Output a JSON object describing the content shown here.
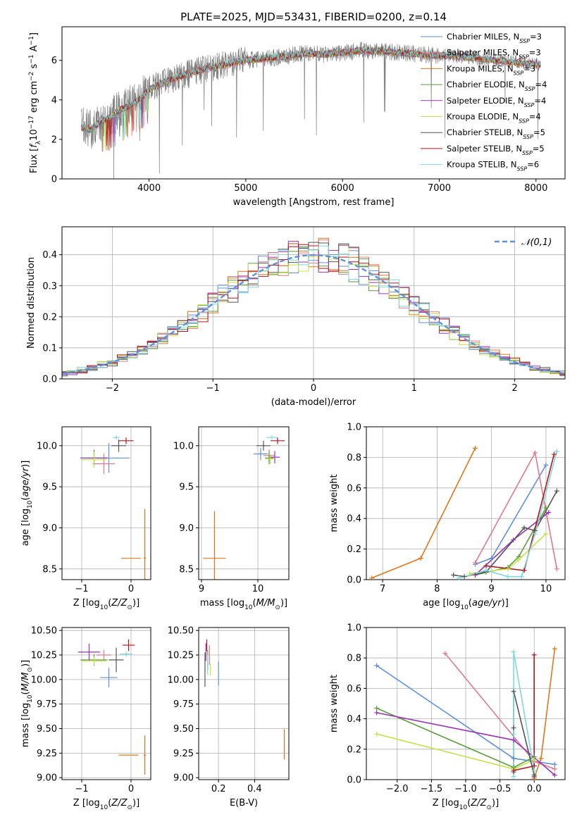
{
  "title": "PLATE=2025, MJD=53431, FIBERID=0200, z=0.14",
  "colors": {
    "Chabrier MILES": "#5f8fde",
    "Salpeter MILES": "#e07a8a",
    "Kroupa MILES": "#e0761a",
    "Chabrier ELODIE": "#5a9e3a",
    "Salpeter ELODIE": "#9a33b8",
    "Kroupa ELODIE": "#c8e04a",
    "Chabrier STELIB": "#555555",
    "Salpeter STELIB": "#b0151c",
    "Kroupa STELIB": "#7fd8e0",
    "data": "#808080",
    "grid": "#b0b0b0"
  },
  "chart_data": [
    {
      "id": "spectrum",
      "type": "line",
      "xlabel": "wavelength [Angstrom, rest frame]",
      "ylabel": "Flux [f_λ 10^-17 erg cm^-2 s^-1 A^-1]",
      "xlim": [
        3100,
        8300
      ],
      "ylim": [
        0,
        7.7
      ],
      "xticks": [
        4000,
        5000,
        6000,
        7000,
        8000
      ],
      "yticks": [
        0,
        2,
        4,
        6
      ],
      "grid": false,
      "legend_position": "upper-right",
      "series_shape": {
        "x": [
          3300,
          3400,
          3500,
          3600,
          3700,
          3800,
          3900,
          4000,
          4200,
          4400,
          4600,
          4800,
          5000,
          5200,
          5400,
          5600,
          5800,
          6000,
          6200,
          6400,
          6600,
          6800,
          7000,
          7200,
          7400,
          7600,
          7800,
          8000
        ],
        "y": [
          2.6,
          2.5,
          2.9,
          3.1,
          3.5,
          3.7,
          4.0,
          4.5,
          5.0,
          5.3,
          5.6,
          5.8,
          6.0,
          6.1,
          6.2,
          6.35,
          6.3,
          6.4,
          6.5,
          6.45,
          6.4,
          6.3,
          6.25,
          6.2,
          6.1,
          6.0,
          5.9,
          5.8
        ]
      },
      "legend": [
        {
          "label": "Chabrier MILES",
          "nssp": "3"
        },
        {
          "label": "Salpeter MILES",
          "nssp": "3"
        },
        {
          "label": "Kroupa MILES",
          "nssp": "3"
        },
        {
          "label": "Chabrier ELODIE",
          "nssp": "4"
        },
        {
          "label": "Salpeter ELODIE",
          "nssp": "4"
        },
        {
          "label": "Kroupa ELODIE",
          "nssp": "4"
        },
        {
          "label": "Chabrier STELIB",
          "nssp": "5"
        },
        {
          "label": "Salpeter STELIB",
          "nssp": "5"
        },
        {
          "label": "Kroupa STELIB",
          "nssp": "6"
        }
      ]
    },
    {
      "id": "residuals",
      "type": "line",
      "xlabel": "(data-model)/error",
      "ylabel": "Normed distribution",
      "xlim": [
        -2.5,
        2.5
      ],
      "ylim": [
        0,
        0.49
      ],
      "xticks": [
        -2,
        -1,
        0,
        1,
        2
      ],
      "yticks": [
        0.0,
        0.1,
        0.2,
        0.3,
        0.4
      ],
      "grid": true,
      "legend_position": "upper-right",
      "legend": [
        "𝒩(0,1)"
      ],
      "reference_curve": "normal(0,1)"
    },
    {
      "id": "age_vs_Z",
      "type": "scatter",
      "xlabel": "Z [log10(Z/Z⊙)]",
      "ylabel": "age [log10(age/yr)]",
      "xlim": [
        -1.4,
        0.4
      ],
      "ylim": [
        8.37,
        10.23
      ],
      "xticks": [
        -1,
        0
      ],
      "yticks": [
        8.5,
        9.0,
        9.5,
        10.0
      ],
      "grid": true,
      "points": [
        {
          "model": "Chabrier MILES",
          "x": -0.45,
          "y": 9.85,
          "ex": 0.85,
          "ey": 0.36
        },
        {
          "model": "Salpeter MILES",
          "x": -0.55,
          "y": 9.78,
          "ex": 0.45,
          "ey": 0.25
        },
        {
          "model": "Kroupa MILES",
          "x": 0.28,
          "y": 8.63,
          "ex": 0.05,
          "ey": 1.2
        },
        {
          "model": "Kroupa MILES",
          "x": 0.0,
          "y": 8.63,
          "ex": 0.4,
          "ey": 0.0
        },
        {
          "model": "Chabrier ELODIE",
          "x": -0.75,
          "y": 9.85,
          "ex": 0.55,
          "ey": 0.18
        },
        {
          "model": "Salpeter ELODIE",
          "x": -0.75,
          "y": 9.85,
          "ex": 0.55,
          "ey": 0.2
        },
        {
          "model": "Kroupa ELODIE",
          "x": -0.75,
          "y": 9.83,
          "ex": 0.5,
          "ey": 0.2
        },
        {
          "model": "Chabrier STELIB",
          "x": -0.25,
          "y": 10.0,
          "ex": 0.3,
          "ey": 0.15
        },
        {
          "model": "Salpeter STELIB",
          "x": -0.1,
          "y": 10.06,
          "ex": 0.3,
          "ey": 0.08
        },
        {
          "model": "Kroupa STELIB",
          "x": -0.3,
          "y": 10.1,
          "ex": 0.15,
          "ey": 0.05
        }
      ]
    },
    {
      "id": "age_vs_mass",
      "type": "scatter",
      "xlabel": "mass [log10(M/M⊙)]",
      "ylabel": "",
      "xlim": [
        8.95,
        10.55
      ],
      "ylim": [
        8.37,
        10.23
      ],
      "xticks": [
        9,
        10
      ],
      "yticks": [
        8.5,
        9.0,
        9.5,
        10.0
      ],
      "grid": true,
      "points": [
        {
          "model": "Chabrier MILES",
          "x": 10.05,
          "y": 9.9,
          "ex": 0.25,
          "ey": 0.15
        },
        {
          "model": "Salpeter MILES",
          "x": 10.2,
          "y": 9.88,
          "ex": 0.2,
          "ey": 0.15
        },
        {
          "model": "Kroupa MILES",
          "x": 9.23,
          "y": 8.63,
          "ex": 0.4,
          "ey": 1.15
        },
        {
          "model": "Chabrier ELODIE",
          "x": 10.2,
          "y": 9.85,
          "ex": 0.15,
          "ey": 0.15
        },
        {
          "model": "Salpeter ELODIE",
          "x": 10.3,
          "y": 9.86,
          "ex": 0.18,
          "ey": 0.15
        },
        {
          "model": "Kroupa ELODIE",
          "x": 10.22,
          "y": 9.84,
          "ex": 0.15,
          "ey": 0.12
        },
        {
          "model": "Chabrier STELIB",
          "x": 10.1,
          "y": 10.0,
          "ex": 0.25,
          "ey": 0.12
        },
        {
          "model": "Salpeter STELIB",
          "x": 10.35,
          "y": 10.06,
          "ex": 0.25,
          "ey": 0.08
        },
        {
          "model": "Kroupa STELIB",
          "x": 10.25,
          "y": 10.1,
          "ex": 0.2,
          "ey": 0.05
        }
      ]
    },
    {
      "id": "massweight_vs_age",
      "type": "line",
      "xlabel": "age [log10(age/yr)]",
      "ylabel": "mass weight",
      "xlim": [
        6.7,
        10.35
      ],
      "ylim": [
        0,
        1.0
      ],
      "xticks": [
        7,
        8,
        9,
        10
      ],
      "yticks": [
        0.0,
        0.2,
        0.4,
        0.6,
        0.8,
        1.0
      ],
      "grid": true,
      "series": [
        {
          "model": "Chabrier MILES",
          "x": [
            8.7,
            9.0,
            10.0
          ],
          "y": [
            0.1,
            0.14,
            0.75
          ]
        },
        {
          "model": "Salpeter MILES",
          "x": [
            8.7,
            9.8,
            10.2
          ],
          "y": [
            0.11,
            0.83,
            0.07
          ]
        },
        {
          "model": "Kroupa MILES",
          "x": [
            6.8,
            7.7,
            8.7
          ],
          "y": [
            0.01,
            0.14,
            0.86
          ]
        },
        {
          "model": "Chabrier ELODIE",
          "x": [
            8.7,
            9.3,
            9.5,
            10.0
          ],
          "y": [
            0.03,
            0.08,
            0.15,
            0.47
          ]
        },
        {
          "model": "Salpeter ELODIE",
          "x": [
            8.7,
            9.4,
            10.05
          ],
          "y": [
            0.03,
            0.26,
            0.44
          ]
        },
        {
          "model": "Kroupa ELODIE",
          "x": [
            8.6,
            9.3,
            9.5,
            10.0
          ],
          "y": [
            0.04,
            0.07,
            0.13,
            0.3
          ]
        },
        {
          "model": "Chabrier STELIB",
          "x": [
            8.3,
            8.5,
            8.9,
            9.6,
            9.8,
            10.2
          ],
          "y": [
            0.03,
            0.02,
            0.05,
            0.34,
            0.32,
            0.58
          ]
        },
        {
          "model": "Salpeter STELIB",
          "x": [
            8.9,
            9.6,
            10.15
          ],
          "y": [
            0.09,
            0.06,
            0.82
          ]
        },
        {
          "model": "Kroupa STELIB",
          "x": [
            8.4,
            8.9,
            9.3,
            9.55,
            9.8,
            10.2
          ],
          "y": [
            0.01,
            0.06,
            0.02,
            0.02,
            0.3,
            0.84
          ]
        }
      ]
    },
    {
      "id": "mass_vs_Z",
      "type": "scatter",
      "xlabel": "Z [log10(Z/Z⊙)]",
      "ylabel": "mass [log10(M/M⊙)]",
      "xlim": [
        -1.4,
        0.4
      ],
      "ylim": [
        8.98,
        10.53
      ],
      "xticks": [
        -1,
        0
      ],
      "yticks": [
        9.0,
        9.25,
        9.5,
        9.75,
        10.0,
        10.25,
        10.5
      ],
      "grid": true,
      "points": [
        {
          "model": "Chabrier MILES",
          "x": -0.45,
          "y": 10.02,
          "ex": 0.35,
          "ey": 0.2
        },
        {
          "model": "Salpeter MILES",
          "x": -0.55,
          "y": 10.25,
          "ex": 0.3,
          "ey": 0.1
        },
        {
          "model": "Kroupa MILES",
          "x": 0.28,
          "y": 9.23,
          "ex": 0.05,
          "ey": 0.4
        },
        {
          "model": "Kroupa MILES",
          "x": -0.05,
          "y": 9.23,
          "ex": 0.4,
          "ey": 0.0
        },
        {
          "model": "Chabrier ELODIE",
          "x": -0.75,
          "y": 10.2,
          "ex": 0.55,
          "ey": 0.12
        },
        {
          "model": "Salpeter ELODIE",
          "x": -0.85,
          "y": 10.28,
          "ex": 0.45,
          "ey": 0.17
        },
        {
          "model": "Kroupa ELODIE",
          "x": -0.75,
          "y": 10.19,
          "ex": 0.5,
          "ey": 0.08
        },
        {
          "model": "Chabrier STELIB",
          "x": -0.3,
          "y": 10.2,
          "ex": 0.3,
          "ey": 0.25
        },
        {
          "model": "Salpeter STELIB",
          "x": -0.05,
          "y": 10.35,
          "ex": 0.25,
          "ey": 0.12
        },
        {
          "model": "Kroupa STELIB",
          "x": -0.1,
          "y": 10.26,
          "ex": 0.25,
          "ey": 0.05
        }
      ]
    },
    {
      "id": "mass_vs_EBV",
      "type": "scatter",
      "xlabel": "E(B-V)",
      "ylabel": "",
      "xlim": [
        0.09,
        0.59
      ],
      "ylim": [
        8.98,
        10.53
      ],
      "xticks": [
        0.2,
        0.4
      ],
      "yticks": [
        9.0,
        9.25,
        9.5,
        9.75,
        10.0,
        10.25,
        10.5
      ],
      "grid": true,
      "points": [
        {
          "model": "Chabrier MILES",
          "x": 0.2,
          "y": 10.06,
          "ex": 0.0,
          "ey": 0.24
        },
        {
          "model": "Salpeter MILES",
          "x": 0.15,
          "y": 10.25,
          "ex": 0.0,
          "ey": 0.2
        },
        {
          "model": "Kroupa MILES",
          "x": 0.565,
          "y": 9.34,
          "ex": 0.0,
          "ey": 0.31
        },
        {
          "model": "Chabrier ELODIE",
          "x": 0.14,
          "y": 10.2,
          "ex": 0.0,
          "ey": 0.2
        },
        {
          "model": "Salpeter ELODIE",
          "x": 0.13,
          "y": 10.28,
          "ex": 0.0,
          "ey": 0.18
        },
        {
          "model": "Kroupa ELODIE",
          "x": 0.155,
          "y": 10.1,
          "ex": 0.0,
          "ey": 0.12
        },
        {
          "model": "Chabrier STELIB",
          "x": 0.125,
          "y": 10.1,
          "ex": 0.0,
          "ey": 0.35
        },
        {
          "model": "Salpeter STELIB",
          "x": 0.135,
          "y": 10.35,
          "ex": 0.0,
          "ey": 0.12
        },
        {
          "model": "Kroupa STELIB",
          "x": 0.14,
          "y": 10.15,
          "ex": 0.0,
          "ey": 0.2
        }
      ]
    },
    {
      "id": "massweight_vs_Z",
      "type": "line",
      "xlabel": "Z [log10(Z/Z⊙)]",
      "ylabel": "mass weight",
      "xlim": [
        -2.45,
        0.45
      ],
      "ylim": [
        0,
        1.0
      ],
      "xticks": [
        -2.0,
        -1.5,
        -1.0,
        -0.5,
        0.0
      ],
      "yticks": [
        0.0,
        0.2,
        0.4,
        0.6,
        0.8,
        1.0
      ],
      "grid": true,
      "series": [
        {
          "model": "Chabrier MILES",
          "x": [
            -2.3,
            -0.3,
            0.3
          ],
          "y": [
            0.75,
            0.14,
            0.1
          ]
        },
        {
          "model": "Salpeter MILES",
          "x": [
            -1.3,
            0.0,
            0.3
          ],
          "y": [
            0.83,
            0.12,
            0.07
          ]
        },
        {
          "model": "Kroupa MILES",
          "x": [
            0.0,
            0.1,
            0.3
          ],
          "y": [
            0.01,
            0.14,
            0.86
          ]
        },
        {
          "model": "Chabrier ELODIE",
          "x": [
            -2.3,
            -0.3,
            0.0
          ],
          "y": [
            0.47,
            0.08,
            0.15
          ]
        },
        {
          "model": "Salpeter ELODIE",
          "x": [
            -2.3,
            -0.3,
            0.3
          ],
          "y": [
            0.44,
            0.26,
            0.03
          ]
        },
        {
          "model": "Kroupa ELODIE",
          "x": [
            -2.3,
            -0.3,
            0.0
          ],
          "y": [
            0.3,
            0.07,
            0.13
          ]
        },
        {
          "model": "Chabrier STELIB",
          "x": [
            -0.3,
            -0.3,
            -0.3,
            0.0,
            0.0
          ],
          "y": [
            0.05,
            0.34,
            0.58,
            0.03,
            0.02
          ]
        },
        {
          "model": "Salpeter STELIB",
          "x": [
            -0.3,
            0.0,
            0.0
          ],
          "y": [
            0.06,
            0.09,
            0.82
          ]
        },
        {
          "model": "Kroupa STELIB",
          "x": [
            -0.3,
            -0.3,
            -0.3,
            0.0
          ],
          "y": [
            0.02,
            0.3,
            0.84,
            0.06
          ]
        }
      ]
    }
  ]
}
